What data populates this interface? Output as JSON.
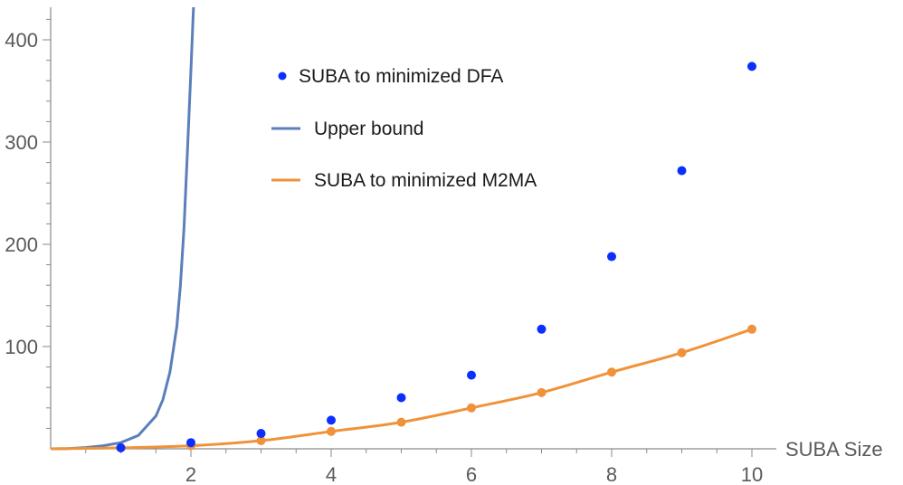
{
  "chart_data": {
    "type": "scatter",
    "xlabel": "SUBA Size",
    "ylabel": "",
    "xlim": [
      0,
      10.2
    ],
    "ylim": [
      0,
      430
    ],
    "x_ticks": [
      2,
      4,
      6,
      8,
      10
    ],
    "y_ticks": [
      100,
      200,
      300,
      400
    ],
    "grid": false,
    "legend_position": "top-center",
    "series": [
      {
        "name": "SUBA to minimized DFA",
        "kind": "points",
        "color": "#0a2fff",
        "x": [
          1,
          2,
          3,
          4,
          5,
          6,
          7,
          8,
          9,
          10
        ],
        "y": [
          1,
          6,
          15,
          28,
          50,
          72,
          117,
          188,
          272,
          374
        ]
      },
      {
        "name": "Upper bound",
        "kind": "line",
        "color": "#5b7fba",
        "x": [
          0,
          0.25,
          0.5,
          0.75,
          1.0,
          1.25,
          1.5,
          1.6,
          1.7,
          1.8,
          1.85,
          1.9,
          1.95,
          2.0,
          2.03,
          2.06
        ],
        "y": [
          0,
          0.3,
          1.2,
          3,
          6,
          13,
          32,
          48,
          75,
          120,
          160,
          215,
          290,
          370,
          420,
          470
        ]
      },
      {
        "name": "SUBA to minimized M2MA",
        "kind": "line-points",
        "color": "#f0923a",
        "x": [
          1,
          2,
          3,
          4,
          5,
          6,
          7,
          8,
          9,
          10
        ],
        "y": [
          1,
          3,
          8,
          17,
          26,
          40,
          55,
          75,
          94,
          117
        ]
      }
    ]
  }
}
